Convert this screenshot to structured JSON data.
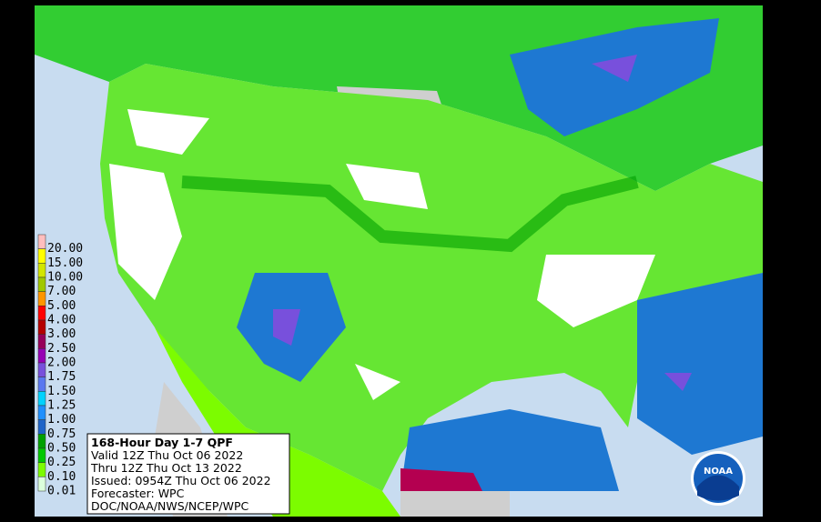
{
  "legend": [
    {
      "label": "20.00",
      "color": "#ffbebe"
    },
    {
      "label": "15.00",
      "color": "#ffff00"
    },
    {
      "label": "10.00",
      "color": "#d2e600"
    },
    {
      "label": "7.00",
      "color": "#a0c800"
    },
    {
      "label": "5.00",
      "color": "#ff9600"
    },
    {
      "label": "4.00",
      "color": "#ff0000"
    },
    {
      "label": "3.00",
      "color": "#b40000"
    },
    {
      "label": "2.50",
      "color": "#96005a"
    },
    {
      "label": "2.00",
      "color": "#9600b4"
    },
    {
      "label": "1.75",
      "color": "#7850dc"
    },
    {
      "label": "1.50",
      "color": "#5a78f0"
    },
    {
      "label": "1.25",
      "color": "#00d2ff"
    },
    {
      "label": "1.00",
      "color": "#1e90ff"
    },
    {
      "label": "0.75",
      "color": "#1e64c8"
    },
    {
      "label": "0.50",
      "color": "#00a000"
    },
    {
      "label": "0.25",
      "color": "#00c800"
    },
    {
      "label": "0.10",
      "color": "#7cfc00"
    },
    {
      "label": "0.01",
      "color": "#dcffdc"
    }
  ],
  "info": {
    "title": "168-Hour Day 1-7 QPF",
    "lines": [
      "Valid 12Z Thu Oct 06 2022",
      "Thru 12Z Thu Oct 13 2022",
      "Issued: 0954Z Thu Oct 06 2022",
      "Forecaster: WPC",
      "DOC/NOAA/NWS/NCEP/WPC"
    ]
  },
  "logo": "NOAA"
}
